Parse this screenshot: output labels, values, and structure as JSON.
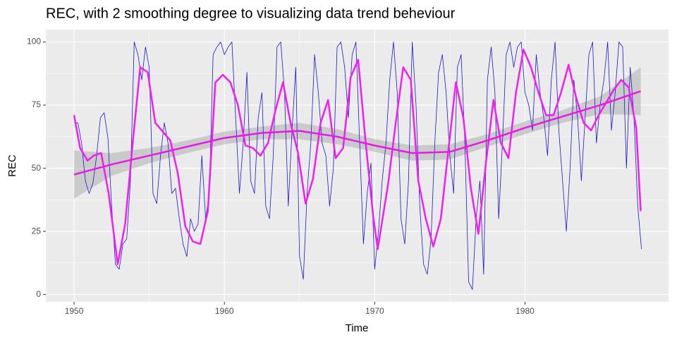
{
  "chart_data": {
    "type": "line",
    "title": "REC, with 2 smoothing degree to visualizing data trend beheviour",
    "x_label": "Time",
    "y_label": "REC",
    "xlim": [
      1948.12,
      1989.55
    ],
    "ylim": [
      -2.9,
      104.9
    ],
    "xticks": [
      1950,
      1960,
      1970,
      1980
    ],
    "yticks": [
      0,
      25,
      50,
      75,
      100
    ],
    "grid": true,
    "series": [
      {
        "color": "#1a1acd",
        "x": [
          1950,
          1950.25,
          1950.5,
          1950.75,
          1951,
          1951.25,
          1951.5,
          1951.75,
          1952,
          1952.25,
          1952.5,
          1952.75,
          1953,
          1953.25,
          1953.5,
          1953.75,
          1954,
          1954.25,
          1954.5,
          1954.75,
          1955,
          1955.25,
          1955.5,
          1955.75,
          1956,
          1956.25,
          1956.5,
          1956.75,
          1957,
          1957.25,
          1957.5,
          1957.75,
          1958,
          1958.25,
          1958.5,
          1958.75,
          1959,
          1959.25,
          1959.5,
          1959.75,
          1960,
          1960.25,
          1960.5,
          1960.75,
          1961,
          1961.25,
          1961.5,
          1961.75,
          1962,
          1962.25,
          1962.5,
          1962.75,
          1963,
          1963.25,
          1963.5,
          1963.75,
          1964,
          1964.25,
          1964.5,
          1964.75,
          1965,
          1965.25,
          1965.5,
          1965.75,
          1966,
          1966.25,
          1966.5,
          1966.75,
          1967,
          1967.25,
          1967.5,
          1967.75,
          1968,
          1968.25,
          1968.5,
          1968.75,
          1969,
          1969.25,
          1969.5,
          1969.75,
          1970,
          1970.25,
          1970.5,
          1970.75,
          1971,
          1971.25,
          1971.5,
          1971.75,
          1972,
          1972.25,
          1972.5,
          1972.75,
          1973,
          1973.25,
          1973.5,
          1973.75,
          1974,
          1974.25,
          1974.5,
          1974.75,
          1975,
          1975.25,
          1975.5,
          1975.75,
          1976,
          1976.25,
          1976.5,
          1976.75,
          1977,
          1977.25,
          1977.5,
          1977.75,
          1978,
          1978.25,
          1978.5,
          1978.75,
          1979,
          1979.25,
          1979.5,
          1979.75,
          1980,
          1980.25,
          1980.5,
          1980.75,
          1981,
          1981.25,
          1981.5,
          1981.75,
          1982,
          1982.25,
          1982.5,
          1982.75,
          1983,
          1983.25,
          1983.5,
          1983.75,
          1984,
          1984.25,
          1984.5,
          1984.75,
          1985,
          1985.25,
          1985.5,
          1985.75,
          1986,
          1986.25,
          1986.5,
          1986.75,
          1987,
          1987.25,
          1987.5,
          1987.75
        ],
        "values": [
          68,
          68,
          60,
          45,
          40,
          44,
          55,
          70,
          72,
          62,
          35,
          12,
          10,
          20,
          22,
          45,
          100,
          95,
          85,
          98,
          90,
          40,
          36,
          55,
          68,
          60,
          40,
          42,
          30,
          20,
          15,
          30,
          25,
          28,
          55,
          30,
          40,
          95,
          98,
          100,
          95,
          98,
          100,
          70,
          40,
          60,
          88,
          45,
          40,
          70,
          80,
          35,
          30,
          55,
          98,
          100,
          80,
          35,
          65,
          90,
          15,
          6,
          40,
          60,
          95,
          80,
          60,
          55,
          35,
          50,
          98,
          100,
          90,
          70,
          95,
          100,
          60,
          20,
          40,
          52,
          10,
          25,
          45,
          60,
          85,
          100,
          80,
          30,
          20,
          45,
          100,
          75,
          35,
          12,
          8,
          22,
          60,
          88,
          95,
          80,
          55,
          40,
          90,
          95,
          60,
          5,
          2,
          30,
          45,
          8,
          85,
          98,
          80,
          30,
          60,
          95,
          100,
          90,
          98,
          100,
          80,
          75,
          65,
          95,
          80,
          70,
          55,
          85,
          100,
          65,
          45,
          25,
          50,
          85,
          70,
          45,
          70,
          95,
          100,
          60,
          75,
          85,
          100,
          65,
          80,
          100,
          98,
          50,
          90,
          70,
          35,
          18
        ]
      },
      {
        "color": "#f01ef0",
        "x": [
          1950,
          1950.4,
          1950.9,
          1951.3,
          1951.8,
          1952.3,
          1952.9,
          1953.4,
          1953.9,
          1954.4,
          1954.9,
          1955.4,
          1956.4,
          1956.9,
          1957.4,
          1957.9,
          1958.4,
          1958.9,
          1959.4,
          1959.9,
          1960.4,
          1960.9,
          1961.4,
          1961.9,
          1962.4,
          1962.9,
          1963.4,
          1963.9,
          1964.4,
          1964.9,
          1965.4,
          1965.9,
          1966.4,
          1966.9,
          1967.4,
          1967.9,
          1968.4,
          1968.9,
          1969.4,
          1969.9,
          1970.2,
          1970.9,
          1971.4,
          1971.9,
          1972.4,
          1972.9,
          1973.4,
          1973.9,
          1974.4,
          1974.9,
          1975.4,
          1975.9,
          1976.4,
          1976.9,
          1977.4,
          1977.9,
          1978.4,
          1978.9,
          1979.4,
          1979.9,
          1980.4,
          1980.9,
          1981.4,
          1981.9,
          1982.4,
          1982.9,
          1983.4,
          1983.9,
          1984.4,
          1984.9,
          1985.4,
          1985.9,
          1986.4,
          1986.9,
          1987.4,
          1987.7
        ],
        "values": [
          71,
          58,
          53,
          55,
          56,
          40,
          12,
          28,
          60,
          90,
          88,
          68,
          61,
          48,
          27,
          21,
          20,
          33,
          84,
          87,
          84,
          75,
          59,
          58,
          55,
          60,
          73,
          84,
          68,
          56,
          36,
          46,
          68,
          77,
          54,
          58,
          86,
          93,
          60,
          31,
          18,
          44,
          68,
          90,
          85,
          45,
          30,
          19,
          30,
          57,
          84,
          70,
          42,
          24,
          52,
          77,
          60,
          54,
          80,
          97,
          90,
          80,
          71,
          71,
          80,
          91,
          78,
          68,
          65,
          71,
          76,
          81,
          85,
          82,
          66,
          33
        ]
      },
      {
        "color": "#e619e6",
        "band_color": "#999999",
        "x": [
          1950,
          1952.5,
          1955,
          1957.5,
          1960,
          1962.5,
          1965,
          1967.5,
          1970,
          1972.5,
          1975,
          1977.5,
          1980,
          1982.5,
          1985,
          1987.7
        ],
        "values": [
          47.5,
          51.5,
          55,
          58.5,
          62,
          64,
          64.8,
          62.5,
          59,
          56,
          56.5,
          61,
          66,
          70.5,
          75,
          80.5
        ],
        "lower": [
          38,
          47,
          52,
          56,
          59.5,
          61.5,
          61.5,
          59.5,
          56.5,
          53,
          53.5,
          58.5,
          63.5,
          68,
          71.5,
          71
        ],
        "upper": [
          57,
          56,
          58,
          61,
          64.5,
          66.5,
          68,
          65.5,
          61.5,
          59,
          59.5,
          63.5,
          68.5,
          73,
          78.5,
          90
        ]
      }
    ]
  }
}
